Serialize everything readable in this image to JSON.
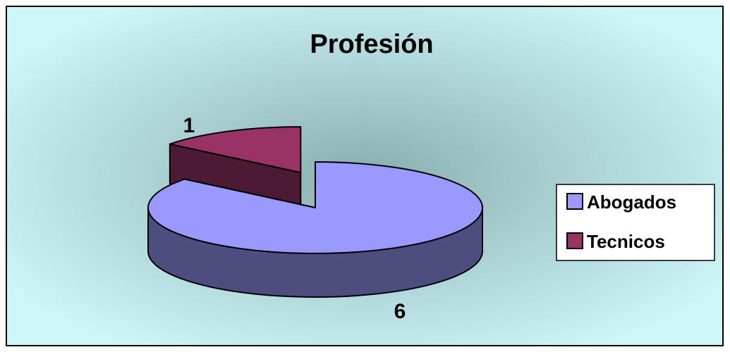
{
  "chart_data": {
    "type": "pie",
    "title": "Profesión",
    "categories": [
      "Abogados",
      "Tecnicos"
    ],
    "values": [
      6,
      1
    ],
    "data_labels": [
      "6",
      "1"
    ],
    "colors": {
      "Abogados": {
        "top": "#9999ff",
        "side": "#4d4d80"
      },
      "Tecnicos": {
        "top": "#993366",
        "side": "#4d1a33"
      },
      "background_center": "#8aaeb0",
      "background_edge": "#cdf6f8"
    },
    "three_d": true,
    "exploded_slice": "Tecnicos",
    "legend": {
      "position": "right",
      "items": [
        "Abogados",
        "Tecnicos"
      ]
    }
  }
}
